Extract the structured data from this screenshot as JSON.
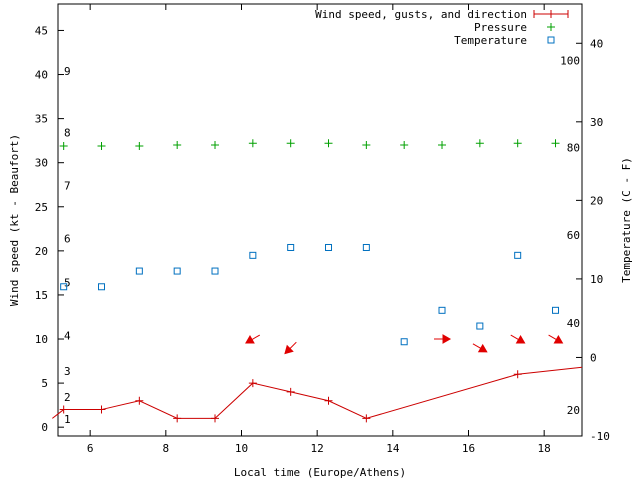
{
  "chart_data": {
    "type": "line",
    "xlabel": "Local time (Europe/Athens)",
    "ylabel": "Wind speed (kt - Beaufort)",
    "y2label": "Temperature (C - F)",
    "xlim": [
      5.15,
      19.0
    ],
    "ylim": [
      -1,
      48
    ],
    "y2lim": [
      -10,
      45
    ],
    "grid": false,
    "legend_position": "top-right",
    "x_ticks": [
      6,
      8,
      10,
      12,
      14,
      16,
      18
    ],
    "y_ticks": [
      0,
      5,
      10,
      15,
      20,
      25,
      30,
      35,
      40,
      45
    ],
    "y2_ticks": [
      -10,
      0,
      10,
      20,
      30,
      40
    ],
    "beaufort_labels": [
      {
        "label": "1",
        "kt": 0.9
      },
      {
        "label": "2",
        "kt": 3.4
      },
      {
        "label": "3",
        "kt": 6.4
      },
      {
        "label": "4",
        "kt": 10.4
      },
      {
        "label": "5",
        "kt": 16.4
      },
      {
        "label": "6",
        "kt": 21.4
      },
      {
        "label": "7",
        "kt": 27.4
      },
      {
        "label": "8",
        "kt": 33.4
      },
      {
        "label": "9",
        "kt": 40.4
      }
    ],
    "fahrenheit_labels": [
      {
        "label": "20",
        "c": -6.7
      },
      {
        "label": "40",
        "c": 4.4
      },
      {
        "label": "60",
        "c": 15.6
      },
      {
        "label": "80",
        "c": 26.7
      },
      {
        "label": "100",
        "c": 37.8
      }
    ],
    "series": [
      {
        "name": "Wind speed, gusts, and direction",
        "color": "#cc0000",
        "axis": "y",
        "x": [
          5.0,
          5.3,
          6.3,
          7.3,
          8.3,
          9.3,
          10.3,
          11.3,
          12.3,
          13.3,
          17.3,
          19.0
        ],
        "values": [
          1,
          2,
          2,
          3,
          1,
          1,
          5,
          4,
          3,
          1,
          6,
          6.8
        ],
        "marker_count": 10
      },
      {
        "name": "Pressure",
        "color": "#00a000",
        "axis": "y",
        "x": [
          5.3,
          6.3,
          7.3,
          8.3,
          9.3,
          10.3,
          11.3,
          12.3,
          13.3,
          14.3,
          15.3,
          16.3,
          17.3,
          18.3
        ],
        "values": [
          31.9,
          31.9,
          31.9,
          32.0,
          32.0,
          32.2,
          32.2,
          32.2,
          32.0,
          32.0,
          32.0,
          32.2,
          32.2,
          32.2
        ]
      },
      {
        "name": "Temperature",
        "color": "#0070c0",
        "axis": "y2",
        "x": [
          5.3,
          6.3,
          7.3,
          8.3,
          9.3,
          10.3,
          11.3,
          12.3,
          13.3,
          14.3,
          15.3,
          16.3,
          17.3,
          18.3
        ],
        "values": [
          9,
          9,
          11,
          11,
          11,
          13,
          14,
          14,
          14,
          2,
          6,
          4,
          13,
          6
        ]
      }
    ],
    "direction_arrows": [
      {
        "x": 10.3,
        "wind_kt": 10,
        "dir_deg": 60
      },
      {
        "x": 11.3,
        "wind_kt": 9,
        "dir_deg": 45
      },
      {
        "x": 15.3,
        "wind_kt": 10,
        "dir_deg": 270
      },
      {
        "x": 16.3,
        "wind_kt": 9,
        "dir_deg": 300
      },
      {
        "x": 17.3,
        "wind_kt": 10,
        "dir_deg": 300
      },
      {
        "x": 18.3,
        "wind_kt": 10,
        "dir_deg": 300
      }
    ]
  }
}
